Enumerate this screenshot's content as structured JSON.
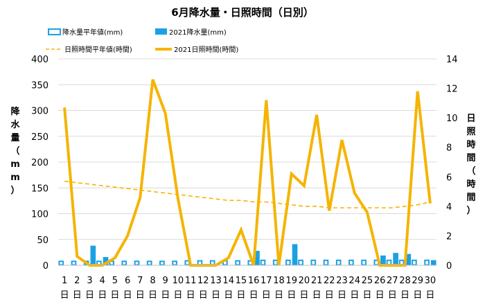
{
  "chart_data": {
    "type": "bar",
    "title": "6月降水量・日照時間（日別）",
    "ylabel": "降水量（mm）",
    "y2label": "日照時間（時間）",
    "ylim": [
      0,
      400
    ],
    "y2lim": [
      0,
      14
    ],
    "yticks": [
      "0",
      "50",
      "100",
      "150",
      "200",
      "250",
      "300",
      "350",
      "400"
    ],
    "y2ticks": [
      "0",
      "2",
      "4",
      "6",
      "8",
      "10",
      "12",
      "14"
    ],
    "categories": [
      "1",
      "2",
      "3",
      "4",
      "5",
      "6",
      "7",
      "8",
      "9",
      "10",
      "11",
      "12",
      "13",
      "14",
      "15",
      "16",
      "17",
      "18",
      "19",
      "20",
      "21",
      "22",
      "23",
      "24",
      "25",
      "26",
      "27",
      "28",
      "29",
      "30"
    ],
    "day_suffix": "日",
    "legend_position": "top",
    "grid": "horizontal",
    "series": [
      {
        "name": "降水量平年値(mm)",
        "type": "bar",
        "axis": "left",
        "style": "outline",
        "color": "#1ba1e2",
        "values": [
          9,
          9,
          9,
          9,
          9,
          9,
          9,
          9,
          9,
          9,
          10,
          10,
          10,
          10,
          10,
          10,
          11,
          11,
          11,
          11,
          11,
          11,
          11,
          11,
          11,
          11,
          11,
          11,
          11,
          11
        ]
      },
      {
        "name": "2021降水量(mm)",
        "type": "bar",
        "axis": "left",
        "style": "solid",
        "color": "#1ba1e2",
        "values": [
          0,
          0,
          38,
          16,
          0,
          0,
          0,
          0,
          0,
          0,
          0,
          0,
          0,
          0,
          0,
          28,
          0,
          0,
          41,
          0,
          0,
          0,
          0,
          0,
          0,
          19,
          24,
          22,
          0,
          10
        ]
      },
      {
        "name": "日照時間平年値(時間)",
        "type": "line",
        "axis": "right",
        "style": "dashed",
        "color": "#f5b400",
        "values": [
          5.7,
          5.6,
          5.5,
          5.4,
          5.3,
          5.2,
          5.1,
          5.0,
          4.9,
          4.8,
          4.7,
          4.6,
          4.5,
          4.4,
          4.4,
          4.3,
          4.3,
          4.2,
          4.1,
          4.0,
          4.0,
          3.9,
          3.9,
          3.9,
          3.9,
          3.9,
          3.9,
          4.0,
          4.1,
          4.3
        ]
      },
      {
        "name": "2021日照時間(時間)",
        "type": "line",
        "axis": "right",
        "style": "solid",
        "color": "#f5b400",
        "values": [
          10.7,
          0.6,
          0.0,
          0.0,
          0.5,
          2.0,
          4.6,
          12.6,
          10.3,
          4.5,
          0.0,
          0.0,
          0.0,
          0.5,
          2.4,
          0.0,
          11.2,
          0.0,
          6.2,
          5.4,
          10.2,
          3.7,
          8.5,
          4.9,
          3.6,
          0.0,
          0.0,
          0.0,
          11.8,
          4.2
        ]
      }
    ]
  }
}
